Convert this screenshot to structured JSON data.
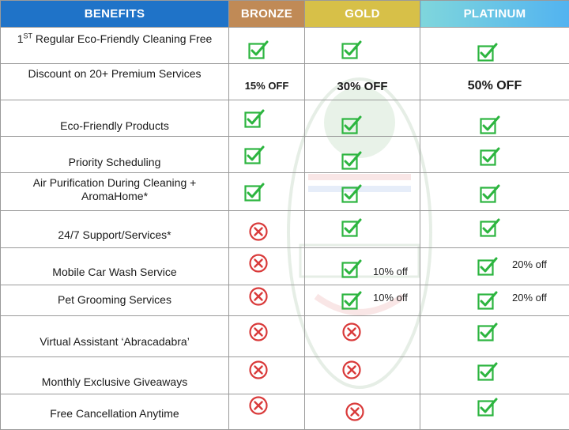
{
  "header": {
    "benefits": "BENEFITS",
    "bronze": "BRONZE",
    "gold": "GOLD",
    "platinum": "PLATINUM"
  },
  "rows": [
    {
      "pre": "1",
      "sup": "ST",
      "label": " Regular Eco-Friendly Cleaning Free",
      "bronze": "check",
      "gold": "check",
      "platinum": "check"
    },
    {
      "label": "Discount on 20+ Premium Services",
      "bronze_text": "15% OFF",
      "gold_text": "30% OFF",
      "platinum_text": "50% OFF"
    },
    {
      "label": "Eco-Friendly Products",
      "bronze": "check",
      "gold": "check",
      "platinum": "check"
    },
    {
      "label": "Priority Scheduling",
      "bronze": "check",
      "gold": "check",
      "platinum": "check"
    },
    {
      "label": "Air Purification During Cleaning +",
      "label2": "AromaHome*",
      "bronze": "check",
      "gold": "check",
      "platinum": "check"
    },
    {
      "label": "24/7 Support/Services*",
      "bronze": "cross",
      "gold": "check",
      "platinum": "check"
    },
    {
      "label": "Mobile Car Wash Service",
      "bronze": "cross",
      "gold": "check",
      "gold_note": "10% off",
      "platinum": "check",
      "platinum_note": "20% off"
    },
    {
      "label": "Pet Grooming Services",
      "bronze": "cross",
      "gold": "check",
      "gold_note": "10% off",
      "platinum": "check",
      "platinum_note": "20% off"
    },
    {
      "label": "Virtual Assistant ‘Abracadabra’",
      "bronze": "cross",
      "gold": "cross",
      "platinum": "check"
    },
    {
      "label": "Monthly Exclusive Giveaways",
      "bronze": "cross",
      "gold": "cross",
      "platinum": "check"
    },
    {
      "label": "Free Cancellation Anytime",
      "bronze": "cross",
      "gold": "cross",
      "platinum": "check"
    }
  ],
  "colors": {
    "benefits_header": "#1f73c8",
    "bronze_header": "#c08a56",
    "gold_header": "#d7c048",
    "platinum_header_start": "#7fd6dc",
    "platinum_header_end": "#52b3f0",
    "check": "#2cb53f",
    "cross": "#d93a3a"
  }
}
